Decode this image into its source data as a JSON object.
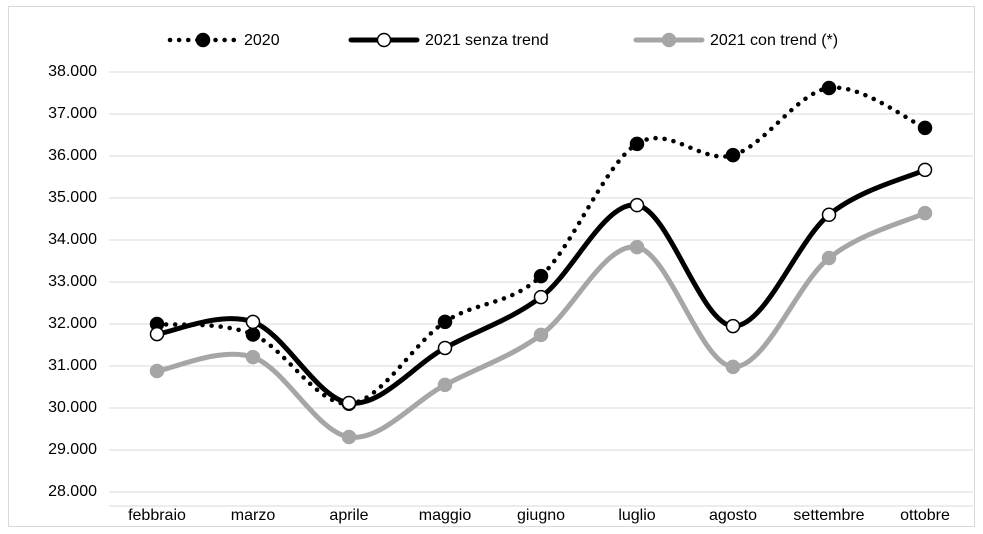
{
  "chart_data": {
    "type": "line",
    "categories": [
      "febbraio",
      "marzo",
      "aprile",
      "maggio",
      "giugno",
      "luglio",
      "agosto",
      "settembre",
      "ottobre"
    ],
    "series": [
      {
        "name": "2020",
        "color": "#000000",
        "line_style": "dotted",
        "marker_fill": "#000000",
        "values": [
          32000,
          31750,
          30100,
          32050,
          33140,
          36290,
          36020,
          37620,
          36670
        ]
      },
      {
        "name": "2021 senza trend",
        "color": "#000000",
        "line_style": "solid",
        "marker_fill": "#ffffff",
        "values": [
          31760,
          32050,
          30120,
          31430,
          32640,
          34830,
          31950,
          34600,
          35670
        ]
      },
      {
        "name": "2021 con trend (*)",
        "color": "#a6a6a6",
        "line_style": "solid",
        "marker_fill": "#a6a6a6",
        "values": [
          30880,
          31210,
          29310,
          30550,
          31740,
          33830,
          30980,
          33570,
          34640
        ]
      }
    ],
    "ylim": [
      28000,
      38000
    ],
    "yticks": [
      {
        "value": 28000,
        "label": "28.000"
      },
      {
        "value": 29000,
        "label": "29.000"
      },
      {
        "value": 30000,
        "label": "30.000"
      },
      {
        "value": 31000,
        "label": "31.000"
      },
      {
        "value": 32000,
        "label": "32.000"
      },
      {
        "value": 33000,
        "label": "33.000"
      },
      {
        "value": 34000,
        "label": "34.000"
      },
      {
        "value": 35000,
        "label": "35.000"
      },
      {
        "value": 36000,
        "label": "36.000"
      },
      {
        "value": 37000,
        "label": "37.000"
      },
      {
        "value": 38000,
        "label": "38.000"
      }
    ],
    "grid": true,
    "smooth": true,
    "legend": "top"
  }
}
